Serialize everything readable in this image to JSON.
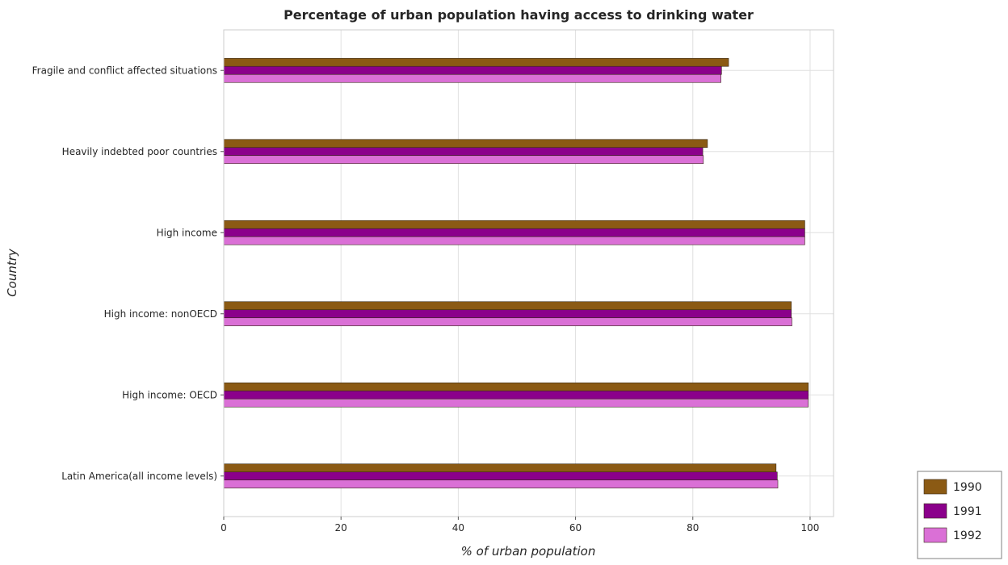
{
  "chart_data": {
    "type": "bar",
    "orientation": "horizontal",
    "title": "Percentage of urban population having access to drinking water",
    "xlabel": "% of urban population",
    "ylabel": "Country",
    "xlim": [
      0,
      104
    ],
    "xticks": [
      0,
      20,
      40,
      60,
      80,
      100
    ],
    "grid": true,
    "legend_position": "bottom-right",
    "categories": [
      "Fragile and conflict affected situations",
      "Heavily indebted poor countries",
      "High income",
      "High income: nonOECD",
      "High income: OECD",
      "Latin America(all income levels)"
    ],
    "series": [
      {
        "name": "1990",
        "color": "#8B5A14",
        "values": [
          86.1,
          82.5,
          99.1,
          96.8,
          99.7,
          94.2
        ]
      },
      {
        "name": "1991",
        "color": "#8B008B",
        "values": [
          84.9,
          81.7,
          99.1,
          96.8,
          99.7,
          94.4
        ]
      },
      {
        "name": "1992",
        "color": "#DA70D6",
        "values": [
          84.8,
          81.8,
          99.1,
          96.9,
          99.7,
          94.5
        ]
      }
    ]
  }
}
